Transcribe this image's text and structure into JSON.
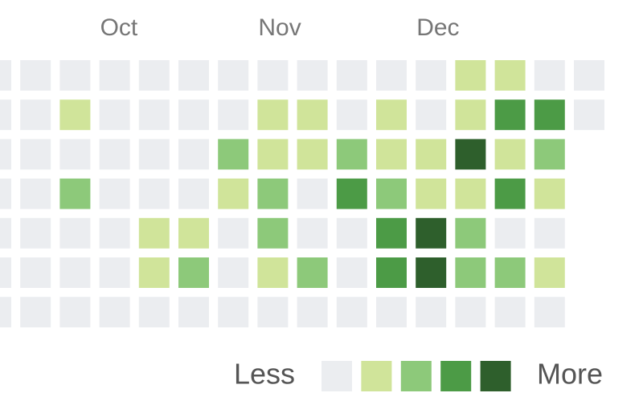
{
  "months": [
    "Oct",
    "Nov",
    "Dec"
  ],
  "grid": {
    "rows": [
      [
        0,
        0,
        0,
        0,
        0,
        0,
        0,
        0,
        0,
        0,
        0,
        0,
        1,
        1,
        0,
        0
      ],
      [
        0,
        0,
        1,
        0,
        0,
        0,
        0,
        1,
        1,
        0,
        1,
        0,
        1,
        3,
        3,
        0
      ],
      [
        0,
        0,
        0,
        0,
        0,
        0,
        2,
        1,
        1,
        2,
        1,
        1,
        4,
        1,
        2,
        null
      ],
      [
        0,
        0,
        2,
        0,
        0,
        0,
        1,
        2,
        0,
        3,
        2,
        1,
        1,
        3,
        1,
        null
      ],
      [
        0,
        0,
        0,
        0,
        1,
        1,
        0,
        2,
        0,
        0,
        3,
        4,
        2,
        0,
        0,
        null
      ],
      [
        0,
        0,
        0,
        0,
        1,
        2,
        0,
        1,
        2,
        0,
        3,
        4,
        2,
        2,
        1,
        null
      ],
      [
        0,
        0,
        0,
        0,
        0,
        0,
        0,
        0,
        0,
        0,
        0,
        0,
        0,
        0,
        0,
        null
      ]
    ]
  },
  "palette": [
    "#ebedf0",
    "#d0e49a",
    "#8dc97a",
    "#4c9b46",
    "#2e5f2c"
  ],
  "legend": {
    "less": "Less",
    "more": "More"
  }
}
